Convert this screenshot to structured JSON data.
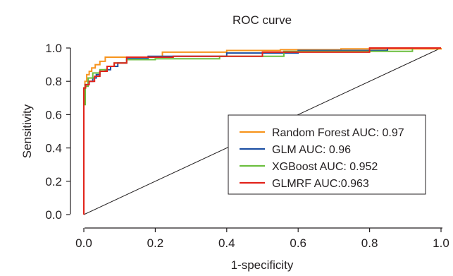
{
  "chart_data": {
    "type": "line",
    "title": "ROC curve",
    "xlabel": "1-specificity",
    "ylabel": "Sensitivity",
    "xlim": [
      0,
      1
    ],
    "ylim": [
      0,
      1
    ],
    "x_ticks": [
      "0.0",
      "0.2",
      "0.4",
      "0.6",
      "0.8",
      "1.0"
    ],
    "y_ticks": [
      "0.0",
      "0.2",
      "0.4",
      "0.6",
      "0.8",
      "1.0"
    ],
    "grid": false,
    "legend_position": "center-right",
    "reference_line": {
      "x": [
        0,
        1
      ],
      "y": [
        0,
        1
      ]
    },
    "series": [
      {
        "name": "Random Forest AUC: 0.97",
        "color": "#f7941d",
        "x": [
          0,
          0,
          0.003,
          0.003,
          0.008,
          0.008,
          0.015,
          0.015,
          0.022,
          0.022,
          0.032,
          0.032,
          0.045,
          0.045,
          0.06,
          0.06,
          0.1,
          0.1,
          0.22,
          0.22,
          0.4,
          0.4,
          0.55,
          0.55,
          0.72,
          0.72,
          1.0,
          1.0
        ],
        "y": [
          0,
          0.76,
          0.76,
          0.8,
          0.8,
          0.84,
          0.84,
          0.86,
          0.86,
          0.88,
          0.88,
          0.9,
          0.9,
          0.92,
          0.92,
          0.945,
          0.945,
          0.945,
          0.945,
          0.975,
          0.975,
          0.985,
          0.985,
          0.99,
          0.99,
          0.995,
          0.995,
          1.0
        ]
      },
      {
        "name": "GLM AUC: 0.96",
        "color": "#1d4fa3",
        "x": [
          0,
          0,
          0.004,
          0.004,
          0.012,
          0.012,
          0.025,
          0.025,
          0.035,
          0.035,
          0.045,
          0.045,
          0.06,
          0.06,
          0.075,
          0.075,
          0.095,
          0.095,
          0.12,
          0.12,
          0.18,
          0.18,
          0.4,
          0.4,
          0.6,
          0.6,
          0.85,
          0.85,
          1.0
        ],
        "y": [
          0,
          0.76,
          0.76,
          0.78,
          0.78,
          0.8,
          0.8,
          0.82,
          0.82,
          0.84,
          0.84,
          0.86,
          0.86,
          0.87,
          0.87,
          0.89,
          0.89,
          0.91,
          0.91,
          0.94,
          0.94,
          0.95,
          0.95,
          0.97,
          0.97,
          0.985,
          0.985,
          1.0,
          1.0
        ]
      },
      {
        "name": "XGBoost AUC: 0.952",
        "color": "#6cbf3f",
        "x": [
          0,
          0,
          0.004,
          0.004,
          0.012,
          0.012,
          0.025,
          0.025,
          0.045,
          0.045,
          0.065,
          0.065,
          0.085,
          0.085,
          0.12,
          0.12,
          0.2,
          0.2,
          0.38,
          0.38,
          0.56,
          0.56,
          0.92,
          0.92,
          1.0
        ],
        "y": [
          0,
          0.66,
          0.66,
          0.77,
          0.77,
          0.82,
          0.82,
          0.85,
          0.85,
          0.87,
          0.87,
          0.89,
          0.89,
          0.91,
          0.91,
          0.93,
          0.93,
          0.935,
          0.935,
          0.95,
          0.95,
          0.98,
          0.98,
          1.0,
          1.0
        ]
      },
      {
        "name": "GLMRF AUC:0.963",
        "color": "#e2231a",
        "x": [
          0,
          0,
          0.005,
          0.005,
          0.015,
          0.015,
          0.03,
          0.03,
          0.045,
          0.045,
          0.065,
          0.065,
          0.085,
          0.085,
          0.12,
          0.12,
          0.25,
          0.25,
          0.5,
          0.5,
          0.8,
          0.8,
          1.0
        ],
        "y": [
          0,
          0.76,
          0.76,
          0.78,
          0.78,
          0.8,
          0.8,
          0.83,
          0.83,
          0.86,
          0.86,
          0.89,
          0.89,
          0.91,
          0.91,
          0.945,
          0.945,
          0.95,
          0.95,
          0.975,
          0.975,
          1.0,
          1.0
        ]
      }
    ]
  }
}
